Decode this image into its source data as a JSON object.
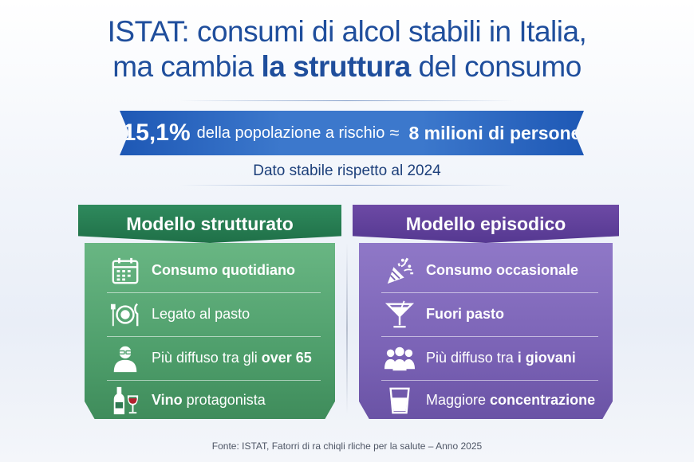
{
  "title": {
    "line1": "ISTAT: consumi di alcol stabili in Italia,",
    "line2_pre": "ma cambia ",
    "line2_bold": "la struttura",
    "line2_post": " del consumo"
  },
  "banner": {
    "percent": "15,1%",
    "text": "della popolazione a rischio",
    "approx": "≈",
    "people": "8 milioni di persone"
  },
  "stable_note": "Dato stabile rispetto al 2024",
  "structured": {
    "title": "Modello strutturato",
    "color": "#2f8a5d",
    "items": [
      {
        "icon": "calendar-icon",
        "bold": "Consumo quotidiano",
        "text": ""
      },
      {
        "icon": "plate-cutlery-icon",
        "text": "Legato al pasto",
        "bold": ""
      },
      {
        "icon": "elderly-person-icon",
        "text": "Più diffuso tra gli ",
        "bold": "over 65"
      },
      {
        "icon": "wine-bottle-icon",
        "bold": "Vino",
        "text": " protagonista"
      }
    ]
  },
  "episodic": {
    "title": "Modello episodico",
    "color": "#6d4aa5",
    "items": [
      {
        "icon": "party-popper-icon",
        "bold": "Consumo occasionale",
        "text": ""
      },
      {
        "icon": "cocktail-glass-icon",
        "bold": "Fuori pasto",
        "text": ""
      },
      {
        "icon": "group-people-icon",
        "text": "Più diffuso tra ",
        "bold": "i giovani"
      },
      {
        "icon": "shot-glass-icon",
        "text": "Maggiore ",
        "bold": "concentrazione"
      }
    ]
  },
  "source": "Fonte: ISTAT, Fatorri di ra chiqli rliche per la salute – Anno 2025"
}
